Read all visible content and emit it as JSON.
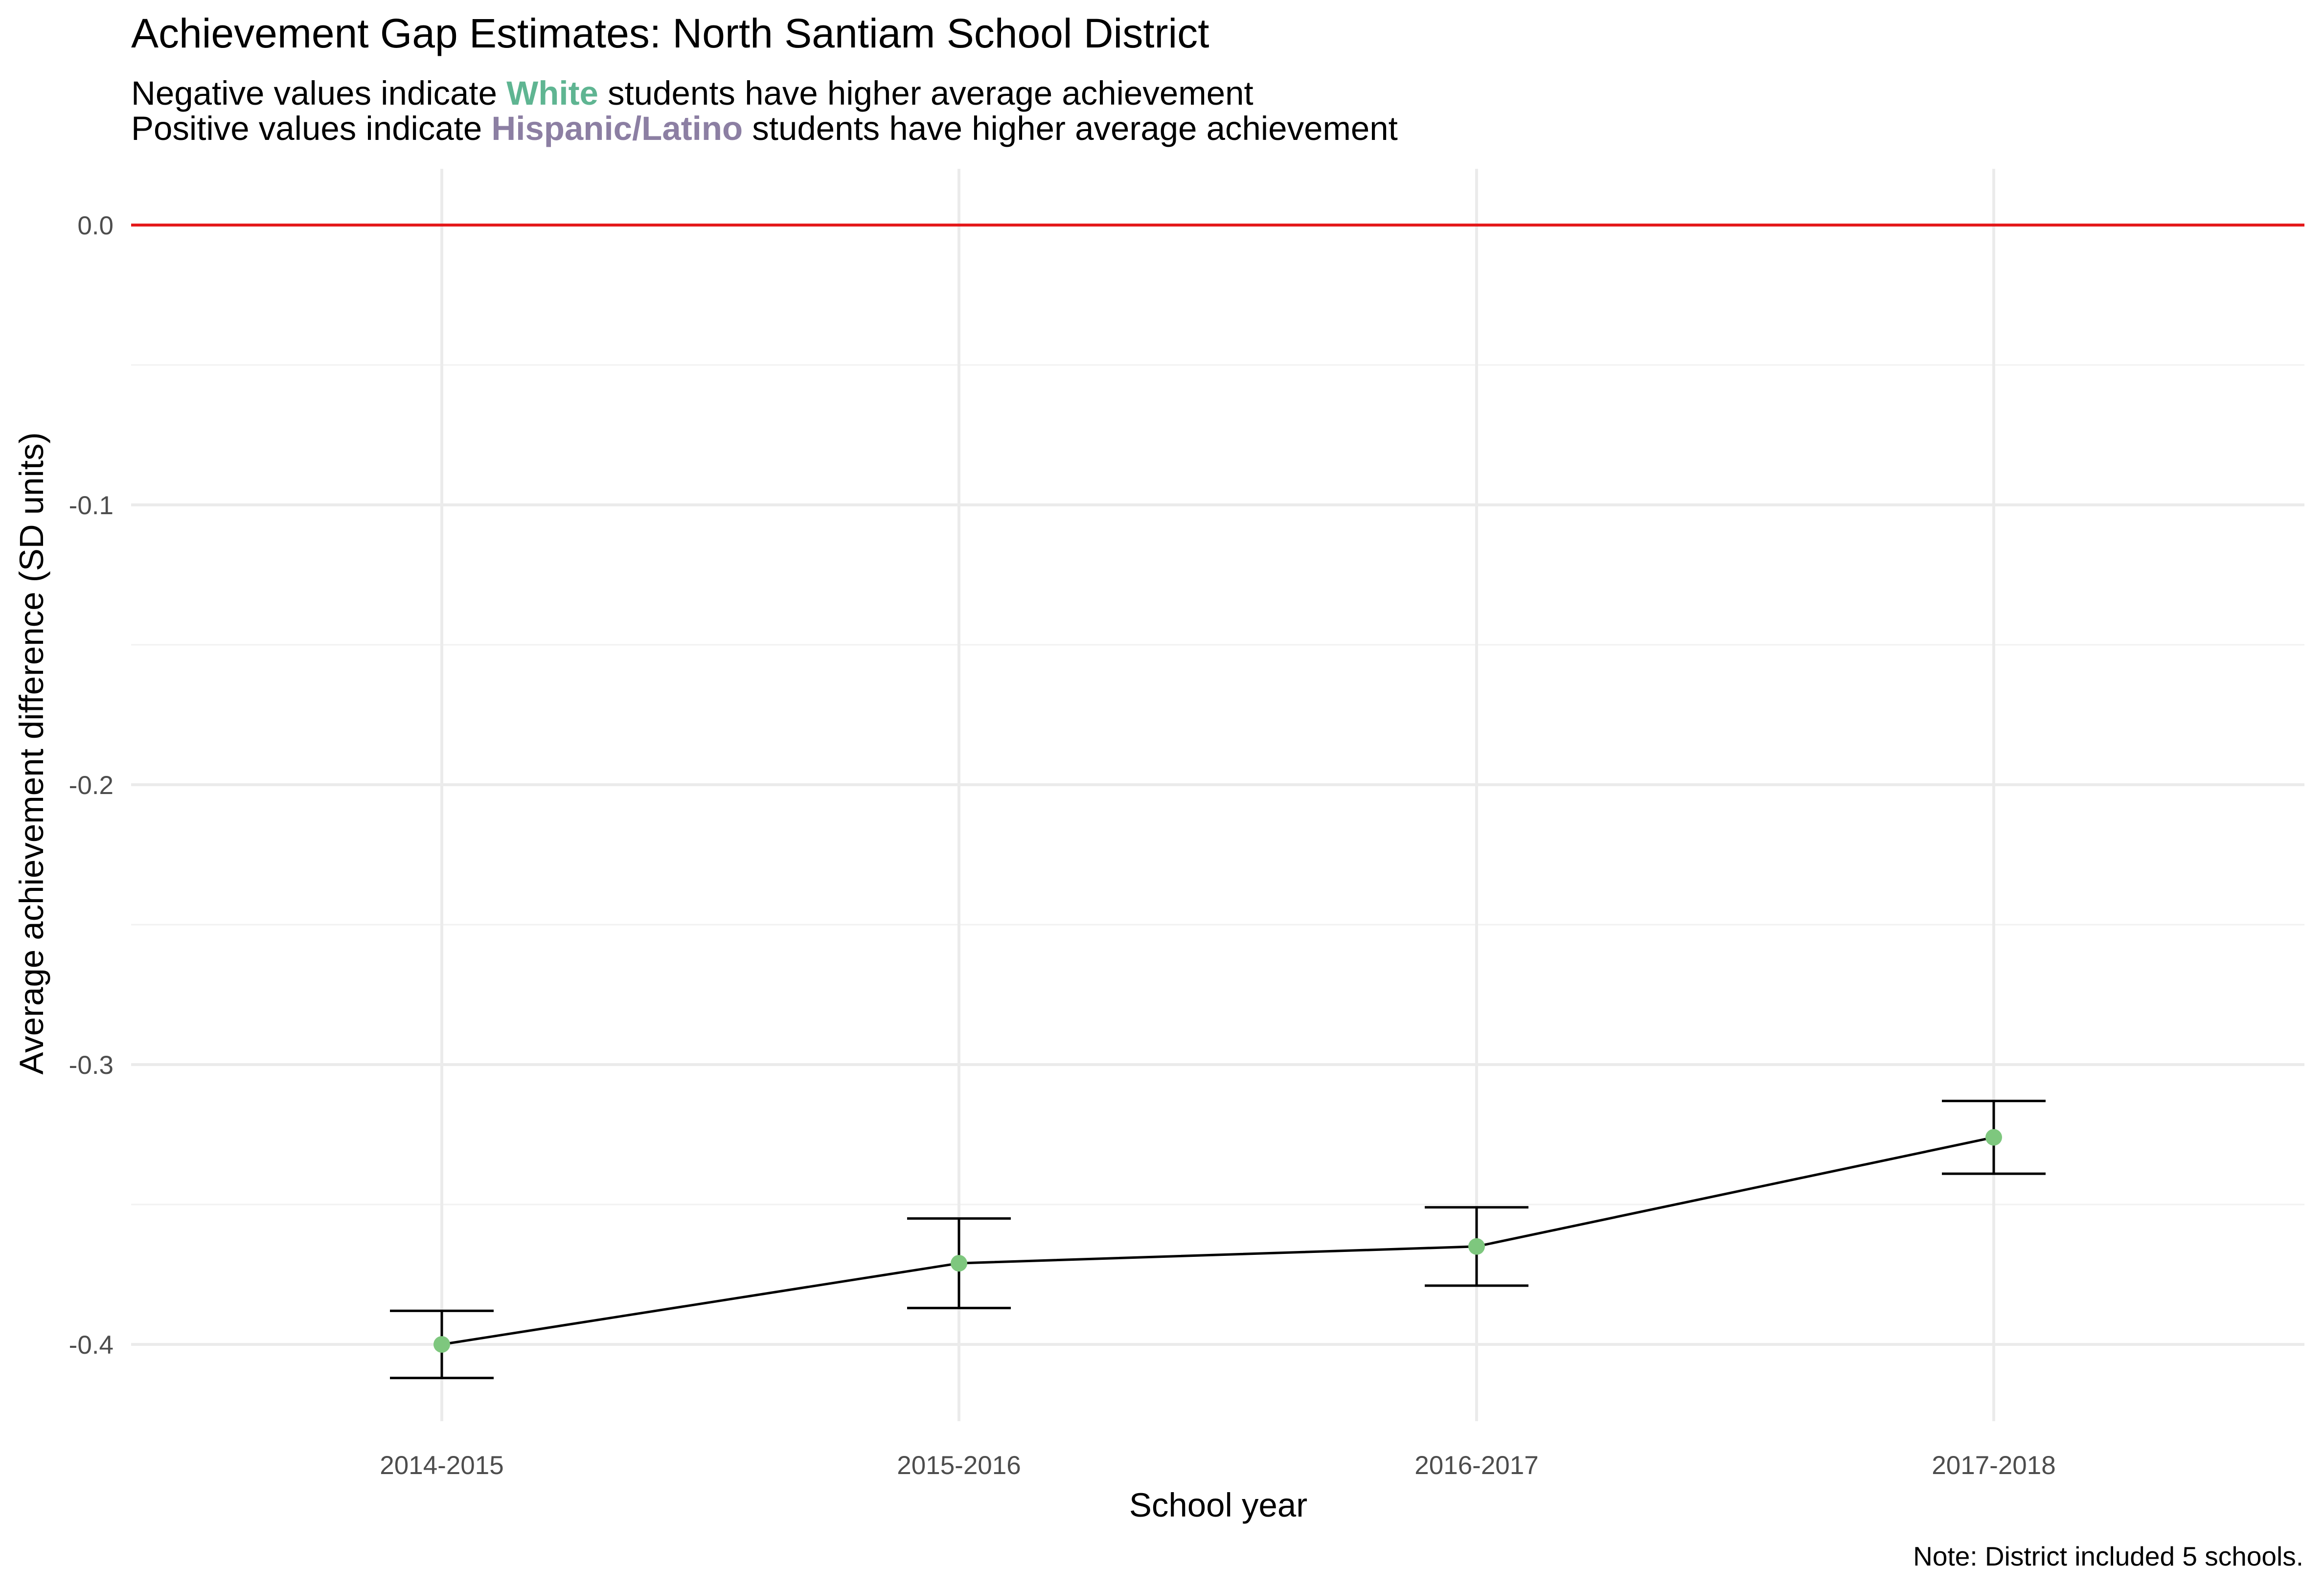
{
  "chart_data": {
    "type": "line",
    "title": "Achievement Gap Estimates: North Santiam School District",
    "subtitle": {
      "line1": {
        "before": "Negative values indicate ",
        "highlight": "White",
        "after": " students have higher average achievement"
      },
      "line2": {
        "before": "Positive values indicate ",
        "highlight": "Hispanic/Latino",
        "after": " students have higher average achievement"
      }
    },
    "xlabel": "School year",
    "ylabel": "Average achievement difference (SD units)",
    "caption": "Note: District included 5 schools.",
    "categories": [
      "2014-2015",
      "2015-2016",
      "2016-2017",
      "2017-2018"
    ],
    "series": [
      {
        "values": [
          -0.4,
          -0.371,
          -0.365,
          -0.326
        ],
        "lower": [
          -0.412,
          -0.387,
          -0.379,
          -0.339
        ],
        "upper": [
          -0.388,
          -0.355,
          -0.351,
          -0.313
        ]
      }
    ],
    "yticks": [
      0.0,
      -0.1,
      -0.2,
      -0.3,
      -0.4
    ],
    "ytick_labels": [
      "0.0",
      "-0.1",
      "-0.2",
      "-0.3",
      "-0.4"
    ],
    "ylim": [
      -0.435,
      0.02
    ],
    "reference_line": 0.0,
    "grid": true,
    "colors": {
      "white_highlight": "#5fb592",
      "hispanic_highlight": "#8c7fa3",
      "point": "#7ec77e",
      "reference_line": "#e41a1c",
      "line": "#000000"
    }
  }
}
